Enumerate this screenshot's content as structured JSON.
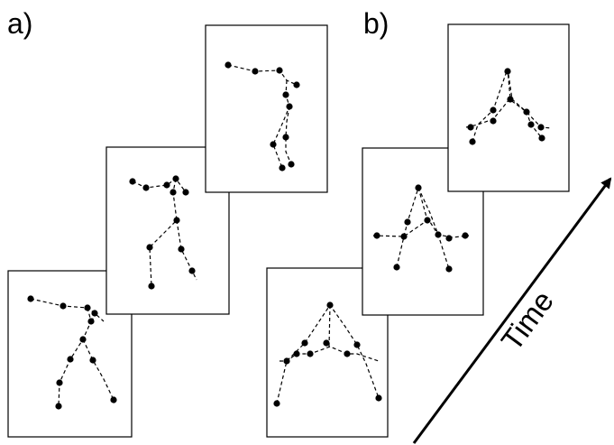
{
  "panels": {
    "a": {
      "label": "a)"
    },
    "b": {
      "label": "b)"
    }
  },
  "time_label": "Time",
  "colors": {
    "ink": "#000000",
    "background": "#ffffff"
  }
}
